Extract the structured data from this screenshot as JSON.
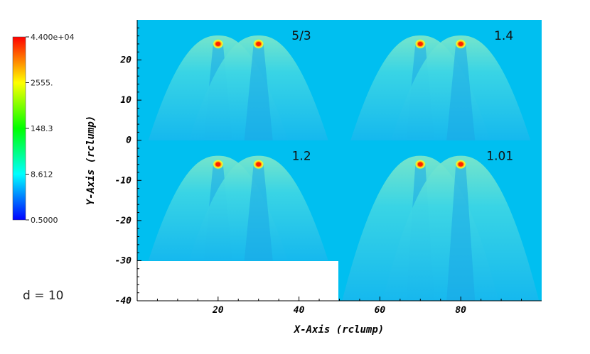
{
  "chart_data": {
    "type": "heatmap",
    "xlabel": "X-Axis (rclump)",
    "ylabel": "Y-Axis (rclump)",
    "xlim": [
      0,
      100
    ],
    "ylim": [
      -40,
      30
    ],
    "x_ticks": [
      20,
      40,
      60,
      80
    ],
    "y_ticks": [
      20,
      10,
      0,
      -10,
      -20,
      -30,
      -40
    ],
    "colorbar": {
      "scale": "log",
      "min": 0.5,
      "max": 44000,
      "labels": [
        "4.400e+04",
        "2555.",
        "148.3",
        "8.612",
        "0.5000"
      ],
      "colors": [
        "#ff0000",
        "#ffff00",
        "#00ff00",
        "#00ffff",
        "#0000ff"
      ]
    },
    "background_color": "#00bff0",
    "panels": [
      {
        "label": "5/3",
        "clump_x": [
          20,
          30
        ],
        "clump_y": 24,
        "bow_bottom_y": 0
      },
      {
        "label": "1.4",
        "clump_x": [
          70,
          80
        ],
        "clump_y": 24,
        "bow_bottom_y": 0
      },
      {
        "label": "1.2",
        "clump_x": [
          20,
          30
        ],
        "clump_y": -6,
        "bow_bottom_y": -30
      },
      {
        "label": "1.01",
        "clump_x": [
          70,
          80
        ],
        "clump_y": -6,
        "bow_bottom_y": -40
      }
    ],
    "annotation": "d = 10"
  }
}
